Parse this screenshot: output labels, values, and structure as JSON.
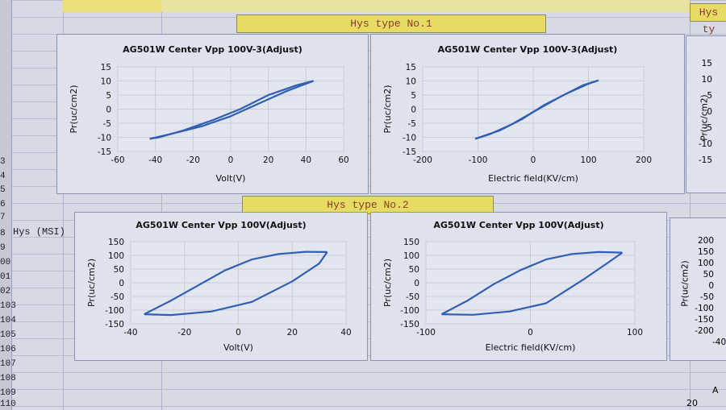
{
  "banners": {
    "hys1": "Hys type No.1",
    "hys2": "Hys type No.2",
    "hys_right": "Hys ty"
  },
  "row_label": "Hys (MSI)",
  "row_numbers": [
    "3",
    "4",
    "5",
    "6",
    "7",
    "8",
    "9",
    "00",
    "01",
    "02",
    "103",
    "104",
    "105",
    "106",
    "107",
    "108",
    "109",
    "110"
  ],
  "right_partial": {
    "top_ticks": [
      "15",
      "10",
      "5",
      "0",
      "-5",
      "-10",
      "-15"
    ],
    "bottom_ticks": [
      "200",
      "150",
      "100",
      "50",
      "0",
      "-50",
      "-100",
      "-150",
      "-200"
    ],
    "top_ylabel": "Pr(uc/cm2)",
    "bottom_ylabel": "Pr(uc/cm2)",
    "edge_tick": "-40",
    "edge_tick2": "0",
    "letter_a": "A",
    "cell_20": "20"
  },
  "chart_data": [
    {
      "type": "line",
      "title": "AG501W Center  Vpp 100V-3(Adjust)",
      "xlabel": "Volt(V)",
      "ylabel": "Pr(uc/cm2)",
      "xlim": [
        -60,
        60
      ],
      "ylim": [
        -15,
        15
      ],
      "xticks": [
        "-60",
        "-40",
        "-20",
        "0",
        "20",
        "40",
        "60"
      ],
      "yticks": [
        "15",
        "10",
        "5",
        "0",
        "-5",
        "-10",
        "-15"
      ],
      "grid": true,
      "series": [
        {
          "values": [
            [
              -43,
              -10.5
            ],
            [
              -30,
              -8.5
            ],
            [
              -15,
              -6
            ],
            [
              0,
              -2.5
            ],
            [
              15,
              2
            ],
            [
              30,
              6.5
            ],
            [
              40,
              9
            ],
            [
              44,
              10
            ]
          ]
        },
        {
          "values": [
            [
              44,
              10
            ],
            [
              35,
              8.5
            ],
            [
              20,
              5
            ],
            [
              5,
              0
            ],
            [
              -10,
              -4
            ],
            [
              -25,
              -7.5
            ],
            [
              -38,
              -10
            ],
            [
              -43,
              -10.5
            ]
          ]
        }
      ]
    },
    {
      "type": "line",
      "title": "AG501W Center  Vpp 100V-3(Adjust)",
      "xlabel": "Electric field(KV/cm)",
      "ylabel": "Pr(uc/cm2)",
      "xlim": [
        -200,
        200
      ],
      "ylim": [
        -15,
        15
      ],
      "xticks": [
        "-200",
        "-100",
        "0",
        "100",
        "200"
      ],
      "yticks": [
        "15",
        "10",
        "5",
        "0",
        "-5",
        "-10",
        "-15"
      ],
      "grid": true,
      "series": [
        {
          "values": [
            [
              -105,
              -10.5
            ],
            [
              -60,
              -7.5
            ],
            [
              -20,
              -3.5
            ],
            [
              20,
              1.5
            ],
            [
              60,
              5.5
            ],
            [
              100,
              9
            ],
            [
              118,
              10.2
            ]
          ]
        },
        {
          "values": [
            [
              118,
              10.2
            ],
            [
              90,
              8.5
            ],
            [
              50,
              4.5
            ],
            [
              0,
              -1
            ],
            [
              -40,
              -5.5
            ],
            [
              -80,
              -9
            ],
            [
              -105,
              -10.5
            ]
          ]
        }
      ]
    },
    {
      "type": "line",
      "title": "AG501W Center  Vpp 100V(Adjust)",
      "xlabel": "Volt(V)",
      "ylabel": "Pr(uc/cm2)",
      "xlim": [
        -40,
        40
      ],
      "ylim": [
        -150,
        150
      ],
      "xticks": [
        "-40",
        "-20",
        "0",
        "20",
        "40"
      ],
      "yticks": [
        "150",
        "100",
        "50",
        "0",
        "-50",
        "-100",
        "-150"
      ],
      "grid": true,
      "series": [
        {
          "values": [
            [
              -35,
              -115
            ],
            [
              -25,
              -65
            ],
            [
              -15,
              -10
            ],
            [
              -5,
              45
            ],
            [
              5,
              85
            ],
            [
              15,
              105
            ],
            [
              25,
              113
            ],
            [
              33,
              112
            ]
          ]
        },
        {
          "values": [
            [
              33,
              112
            ],
            [
              30,
              70
            ],
            [
              20,
              5
            ],
            [
              5,
              -70
            ],
            [
              -10,
              -105
            ],
            [
              -25,
              -118
            ],
            [
              -35,
              -115
            ]
          ]
        }
      ]
    },
    {
      "type": "line",
      "title": "AG501W Center  Vpp 100V(Adjust)",
      "xlabel": "Electric field(KV/cm)",
      "ylabel": "Pr(uc/cm2)",
      "xlim": [
        -100,
        100
      ],
      "ylim": [
        -150,
        150
      ],
      "xticks": [
        "-100",
        "0",
        "100"
      ],
      "yticks": [
        "150",
        "100",
        "50",
        "0",
        "-50",
        "-100",
        "-150"
      ],
      "grid": true,
      "series": [
        {
          "values": [
            [
              -85,
              -115
            ],
            [
              -60,
              -65
            ],
            [
              -35,
              -5
            ],
            [
              -10,
              45
            ],
            [
              15,
              85
            ],
            [
              40,
              105
            ],
            [
              65,
              112
            ],
            [
              88,
              110
            ]
          ]
        },
        {
          "values": [
            [
              88,
              110
            ],
            [
              75,
              75
            ],
            [
              50,
              10
            ],
            [
              15,
              -75
            ],
            [
              -20,
              -105
            ],
            [
              -55,
              -117
            ],
            [
              -85,
              -115
            ]
          ]
        }
      ]
    }
  ],
  "colors": {
    "series": "#2f5fb0",
    "grid": "#c9ccd8",
    "axis": "#8c90a4"
  }
}
